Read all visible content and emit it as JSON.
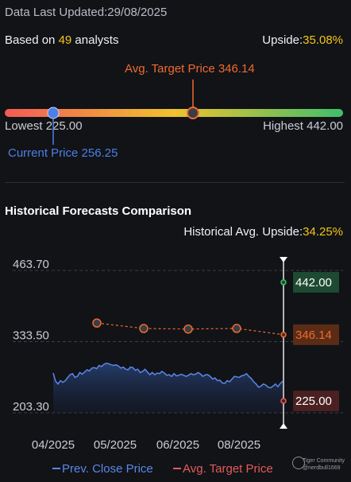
{
  "header": {
    "updated": "Data Last Updated:29/08/2025",
    "based_prefix": "Based on ",
    "analyst_count": "49",
    "based_suffix": " analysts",
    "upside_label": "Upside:",
    "upside_value": "35.08%"
  },
  "range": {
    "avg_target": "Avg. Target Price 346.14",
    "lowest": "Lowest 225.00",
    "highest": "Highest 442.00",
    "current": "Current Price 256.25",
    "low_value": 225.0,
    "high_value": 442.0,
    "current_value": 256.25,
    "avg_value": 346.14,
    "colors": {
      "low": "#f25a57",
      "mid": "#f0c22e",
      "high": "#3fbf6b",
      "current": "#4d7fe8",
      "avg": "#f06a2f"
    }
  },
  "historical": {
    "title": "Historical Forecasts Comparison",
    "upside_label": "Historical Avg. Upside:",
    "upside_value": "34.25%"
  },
  "legend": {
    "prev_close": "Prev. Close Price",
    "avg_target": "Avg. Target Price"
  },
  "watermark": {
    "brand": "Tiger Community",
    "user": "@nerdbull1669"
  },
  "chart_data": {
    "type": "line",
    "ylim": [
      203.3,
      463.7
    ],
    "yticks": [
      "463.70",
      "333.50",
      "203.30"
    ],
    "xticks": [
      "04/2025",
      "05/2025",
      "06/2025",
      "08/2025"
    ],
    "series": [
      {
        "name": "Prev. Close Price",
        "values": [
          276,
          261,
          256,
          262,
          259,
          262,
          268,
          273,
          275,
          268,
          270,
          277,
          274,
          278,
          282,
          280,
          285,
          286,
          284,
          290,
          288,
          292,
          294,
          293,
          291,
          290,
          291,
          289,
          285,
          287,
          283,
          282,
          287,
          286,
          281,
          283,
          277,
          279,
          283,
          278,
          273,
          277,
          273,
          276,
          275,
          279,
          276,
          272,
          273,
          270,
          275,
          271,
          272,
          274,
          272,
          270,
          272,
          275,
          273,
          274,
          277,
          274,
          270,
          273,
          273,
          270,
          265,
          267,
          262,
          263,
          258,
          257,
          262,
          260,
          265,
          270,
          269,
          268,
          271,
          272,
          275,
          270,
          266,
          260,
          256,
          250,
          252,
          256,
          254,
          250,
          249,
          252,
          256,
          251,
          257,
          261
        ],
        "color": "#5b86e8"
      },
      {
        "name": "Avg. Target Price",
        "values": [
          367.5,
          357.5,
          356.5,
          357.6,
          346.14
        ],
        "color": "#f06a2f"
      }
    ],
    "end_labels": [
      {
        "label": "442.00",
        "value": 442.0,
        "color": "#3fbf6b",
        "bg": "#1e4a32"
      },
      {
        "label": "346.14",
        "value": 346.14,
        "color": "#f06a2f",
        "bg": "#5a2c16"
      },
      {
        "label": "225.00",
        "value": 225.0,
        "color": "#f25a57",
        "bg": "#4a2020"
      }
    ]
  }
}
